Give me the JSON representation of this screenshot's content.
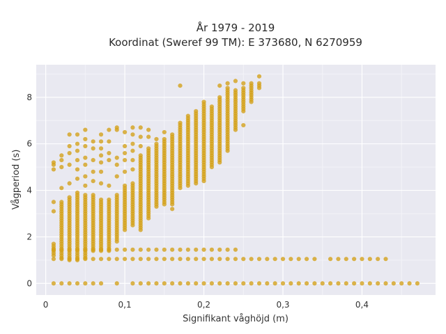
{
  "chart_data": {
    "type": "scatter",
    "title_line1": "År 1979 - 2019",
    "title_line2": "Koordinat (Sweref 99 TM): E 373680, N 6270959",
    "xlabel": "Signifikant våghöjd (m)",
    "ylabel": "Vågperiod (s)",
    "xlim": [
      -0.012,
      0.493
    ],
    "ylim": [
      -0.5,
      9.4
    ],
    "x_ticks": [
      0,
      0.1,
      0.2,
      0.3,
      0.4
    ],
    "x_tick_labels": [
      "0",
      "0,1",
      "0,2",
      "0,3",
      "0,4"
    ],
    "y_ticks": [
      0,
      2,
      4,
      6,
      8
    ],
    "y_tick_labels": [
      "0",
      "2",
      "4",
      "6",
      "8"
    ],
    "grid": true,
    "point_color": "#D4A017",
    "plot_background": "#E9E9F1",
    "series": [
      {
        "x_start": 0.01,
        "x_end": 0.47,
        "x_step": 0.01,
        "y_values": [
          0
        ],
        "missing_x": [
          0.08,
          0.1
        ]
      },
      {
        "x_start": 0.01,
        "x_end": 0.43,
        "x_step": 0.01,
        "y_values": [
          1.05
        ],
        "missing_x": [
          0.35
        ]
      },
      {
        "x_start": 0.01,
        "x_end": 0.24,
        "x_step": 0.01,
        "y_values": [
          1.45
        ],
        "missing_x": []
      },
      {
        "columns": [
          {
            "x": 0.01,
            "y_min": 1.2,
            "y_max": 1.7,
            "extra": [
              3.1,
              3.5,
              4.9,
              5.1,
              5.2
            ]
          },
          {
            "x": 0.02,
            "y_min": 1.1,
            "y_max": 3.5,
            "extra": [
              4.1,
              5.0,
              5.3,
              5.5
            ]
          },
          {
            "x": 0.03,
            "y_min": 1.0,
            "y_max": 3.7,
            "extra": [
              4.3,
              5.1,
              5.6,
              5.9,
              6.4
            ]
          },
          {
            "x": 0.04,
            "y_min": 1.0,
            "y_max": 3.9,
            "extra": [
              4.5,
              4.9,
              5.3,
              5.7,
              6.0,
              6.4
            ]
          },
          {
            "x": 0.05,
            "y_min": 1.1,
            "y_max": 3.8,
            "extra": [
              4.2,
              4.6,
              5.1,
              5.4,
              5.9,
              6.2,
              6.6
            ]
          },
          {
            "x": 0.06,
            "y_min": 1.4,
            "y_max": 3.8,
            "extra": [
              4.4,
              4.8,
              5.3,
              5.8,
              6.1
            ]
          },
          {
            "x": 0.07,
            "y_min": 1.4,
            "y_max": 3.6,
            "extra": [
              4.3,
              4.8,
              5.2,
              5.5,
              5.8,
              6.1,
              6.4
            ]
          },
          {
            "x": 0.08,
            "y_min": 1.4,
            "y_max": 3.6,
            "extra": [
              4.2,
              5.3,
              5.6,
              6.1,
              6.6
            ]
          },
          {
            "x": 0.09,
            "y_min": 1.8,
            "y_max": 3.8,
            "extra": [
              4.6,
              5.1,
              5.4,
              6.6,
              6.7
            ]
          },
          {
            "x": 0.1,
            "y_min": 2.3,
            "y_max": 4.2,
            "extra": [
              4.8,
              5.3,
              5.6,
              5.9,
              6.5
            ]
          },
          {
            "x": 0.11,
            "y_min": 2.5,
            "y_max": 4.3,
            "extra": [
              4.9,
              5.3,
              5.7,
              6.0,
              6.4,
              6.7
            ]
          },
          {
            "x": 0.12,
            "y_min": 2.3,
            "y_max": 5.5,
            "extra": [
              5.9,
              6.3,
              6.7
            ]
          },
          {
            "x": 0.13,
            "y_min": 2.8,
            "y_max": 5.8,
            "extra": [
              6.3,
              6.6
            ]
          },
          {
            "x": 0.14,
            "y_min": 3.3,
            "y_max": 6.0,
            "extra": [
              6.2
            ]
          },
          {
            "x": 0.15,
            "y_min": 3.4,
            "y_max": 6.2,
            "extra": [
              6.5
            ]
          },
          {
            "x": 0.16,
            "y_min": 3.4,
            "y_max": 6.4,
            "extra": [
              3.2
            ]
          },
          {
            "x": 0.17,
            "y_min": 4.1,
            "y_max": 6.9,
            "extra": [
              8.5
            ]
          },
          {
            "x": 0.18,
            "y_min": 4.2,
            "y_max": 7.2,
            "extra": []
          },
          {
            "x": 0.19,
            "y_min": 4.3,
            "y_max": 7.4,
            "extra": []
          },
          {
            "x": 0.2,
            "y_min": 4.4,
            "y_max": 7.8,
            "extra": []
          },
          {
            "x": 0.21,
            "y_min": 5.0,
            "y_max": 7.6,
            "extra": []
          },
          {
            "x": 0.22,
            "y_min": 5.2,
            "y_max": 8.0,
            "extra": [
              8.5
            ]
          },
          {
            "x": 0.23,
            "y_min": 5.7,
            "y_max": 8.4,
            "extra": [
              8.6
            ]
          },
          {
            "x": 0.24,
            "y_min": 6.6,
            "y_max": 8.3,
            "extra": [
              8.7
            ]
          },
          {
            "x": 0.25,
            "y_min": 7.4,
            "y_max": 8.4,
            "extra": [
              6.8,
              8.6
            ]
          },
          {
            "x": 0.26,
            "y_min": 7.8,
            "y_max": 8.6,
            "extra": []
          },
          {
            "x": 0.27,
            "y_min": 8.4,
            "y_max": 8.6,
            "extra": [
              8.9
            ]
          }
        ],
        "y_step": 0.1
      }
    ]
  }
}
